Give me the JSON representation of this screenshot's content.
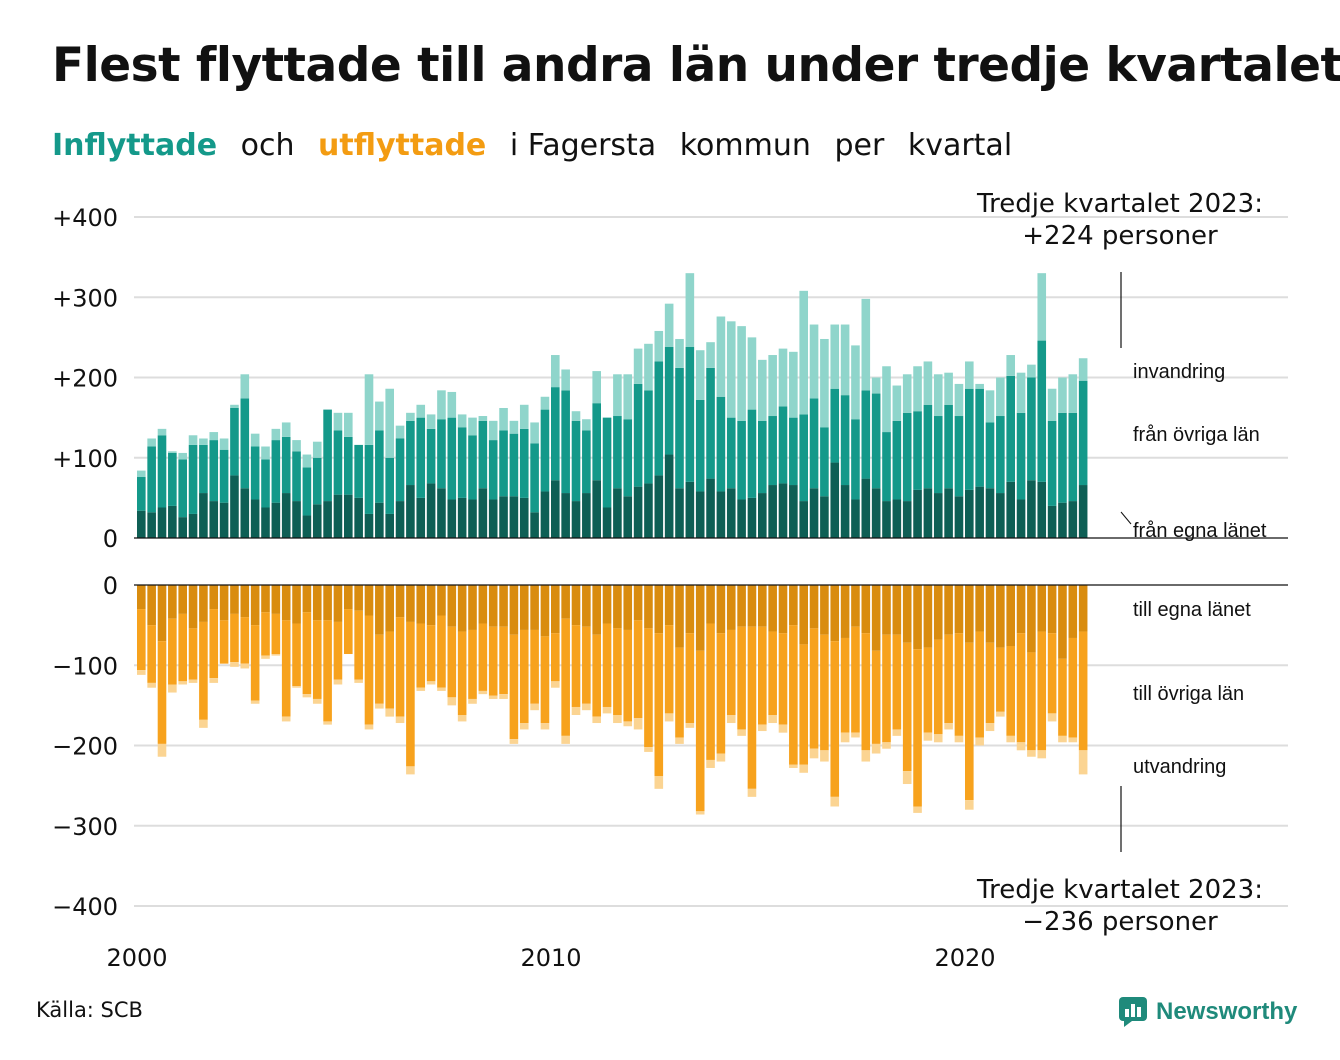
{
  "title": "Flest flyttade till andra län under tredje kvartalet",
  "subtitle": {
    "part1": "Inflyttade",
    "part2": "och",
    "part3": "utflyttade",
    "part4": "i Fagersta",
    "part5": "kommun",
    "part6": "per",
    "part7": "kvartal"
  },
  "source": "Källa: SCB",
  "logo": {
    "text": "Newsworthy",
    "icon": "newsworthy-logo-icon"
  },
  "colors": {
    "in_own": "#0e5f55",
    "in_other": "#14998a",
    "in_abroad": "#8fd5cb",
    "out_own": "#d98c0f",
    "out_other": "#f7a21d",
    "out_abroad": "#fbd492",
    "grid": "#dddddd",
    "accent_in": "#14998a",
    "accent_out": "#f39c12"
  },
  "chart_data": {
    "type": "bar",
    "stacked": true,
    "x_unit": "quarter",
    "x_start": "2000 Q1",
    "x_ticks": [
      "2000",
      "2010",
      "2020"
    ],
    "y_ticks_top": [
      "+400",
      "+300",
      "+200",
      "+100",
      "0"
    ],
    "y_ticks_bottom": [
      "0",
      "−100",
      "−200",
      "−300",
      "−400"
    ],
    "ylim_top": [
      0,
      400
    ],
    "ylim_bottom": [
      -400,
      0
    ],
    "grid": true,
    "annotation_top": {
      "line1": "Tredje kvartalet 2023:",
      "line2": "+224 personer"
    },
    "annotation_bottom": {
      "line1": "Tredje kvartalet 2023:",
      "line2": "−236 personer"
    },
    "series_labels": {
      "in_abroad": "invandring",
      "in_other": "från övriga län",
      "in_own": "från egna länet",
      "out_own": "till egna länet",
      "out_other": "till övriga län",
      "out_abroad": "utvandring"
    },
    "inflyttade": {
      "fran_egna_lanet": [
        34,
        32,
        38,
        40,
        26,
        30,
        56,
        46,
        44,
        78,
        62,
        48,
        38,
        44,
        56,
        46,
        28,
        42,
        46,
        54,
        54,
        50,
        30,
        44,
        30,
        46,
        66,
        50,
        68,
        62,
        48,
        50,
        48,
        62,
        48,
        52,
        52,
        50,
        32,
        58,
        72,
        56,
        46,
        56,
        72,
        38,
        62,
        52,
        64,
        68,
        78,
        104,
        62,
        70,
        58,
        74,
        58,
        62,
        48,
        50,
        56,
        66,
        68,
        66,
        46,
        62,
        52,
        94,
        66,
        48,
        74,
        62,
        46,
        48,
        46,
        60,
        62,
        56,
        62,
        52,
        60,
        64,
        62,
        56,
        70,
        48,
        72,
        70,
        40,
        44,
        46,
        66
      ],
      "fran_ovriga_lan": [
        42,
        82,
        90,
        66,
        72,
        86,
        60,
        76,
        66,
        84,
        112,
        66,
        60,
        78,
        70,
        62,
        60,
        58,
        114,
        80,
        72,
        66,
        86,
        90,
        70,
        78,
        80,
        100,
        68,
        86,
        102,
        88,
        80,
        84,
        74,
        82,
        78,
        86,
        86,
        102,
        116,
        128,
        100,
        78,
        96,
        112,
        90,
        96,
        128,
        116,
        142,
        134,
        150,
        168,
        114,
        138,
        118,
        88,
        98,
        110,
        90,
        86,
        96,
        84,
        108,
        112,
        86,
        92,
        112,
        100,
        110,
        118,
        86,
        98,
        110,
        98,
        104,
        96,
        104,
        100,
        126,
        122,
        82,
        96,
        132,
        108,
        128,
        176,
        106,
        112,
        110,
        130
      ],
      "invandring": [
        8,
        10,
        8,
        2,
        8,
        12,
        8,
        10,
        14,
        4,
        30,
        16,
        16,
        14,
        18,
        14,
        16,
        20,
        0,
        22,
        30,
        0,
        88,
        36,
        86,
        16,
        10,
        16,
        18,
        36,
        32,
        16,
        22,
        6,
        24,
        28,
        16,
        30,
        26,
        16,
        40,
        26,
        12,
        14,
        40,
        0,
        52,
        56,
        44,
        58,
        38,
        54,
        36,
        92,
        62,
        32,
        100,
        120,
        118,
        90,
        76,
        76,
        72,
        82,
        154,
        92,
        110,
        80,
        88,
        92,
        114,
        20,
        82,
        44,
        48,
        56,
        54,
        52,
        40,
        40,
        34,
        6,
        40,
        48,
        26,
        50,
        16,
        84,
        40,
        44,
        48,
        28
      ]
    },
    "utflyttade": {
      "till_egna_lanet": [
        30,
        50,
        70,
        42,
        36,
        54,
        46,
        30,
        44,
        36,
        40,
        50,
        34,
        36,
        44,
        48,
        34,
        44,
        44,
        46,
        30,
        32,
        38,
        62,
        58,
        40,
        46,
        48,
        50,
        38,
        52,
        58,
        56,
        48,
        52,
        52,
        62,
        56,
        56,
        64,
        60,
        42,
        50,
        52,
        62,
        48,
        54,
        56,
        44,
        54,
        60,
        50,
        78,
        60,
        82,
        48,
        60,
        56,
        52,
        52,
        52,
        58,
        60,
        50,
        74,
        54,
        62,
        70,
        66,
        52,
        60,
        82,
        62,
        62,
        72,
        80,
        78,
        68,
        62,
        60,
        72,
        58,
        72,
        78,
        76,
        60,
        84,
        58,
        60,
        92,
        66,
        58
      ],
      "till_ovriga_lan": [
        76,
        72,
        128,
        82,
        84,
        64,
        122,
        86,
        54,
        60,
        58,
        94,
        54,
        50,
        120,
        78,
        102,
        98,
        126,
        72,
        56,
        86,
        136,
        86,
        96,
        124,
        180,
        80,
        70,
        90,
        88,
        104,
        86,
        84,
        86,
        84,
        130,
        116,
        92,
        108,
        60,
        146,
        102,
        96,
        102,
        104,
        108,
        114,
        122,
        148,
        178,
        110,
        112,
        112,
        200,
        170,
        150,
        106,
        128,
        202,
        122,
        104,
        114,
        174,
        150,
        150,
        144,
        194,
        118,
        132,
        146,
        116,
        134,
        118,
        160,
        196,
        106,
        118,
        110,
        128,
        196,
        132,
        100,
        80,
        112,
        136,
        122,
        148,
        100,
        96,
        124,
        148
      ],
      "utvandring": [
        6,
        6,
        16,
        10,
        4,
        4,
        10,
        6,
        0,
        6,
        6,
        4,
        4,
        2,
        6,
        2,
        4,
        6,
        4,
        6,
        0,
        4,
        6,
        6,
        10,
        8,
        10,
        4,
        4,
        4,
        10,
        8,
        6,
        4,
        4,
        6,
        6,
        8,
        8,
        8,
        8,
        10,
        10,
        8,
        8,
        8,
        10,
        6,
        14,
        6,
        16,
        10,
        8,
        6,
        4,
        10,
        10,
        10,
        8,
        10,
        8,
        10,
        10,
        4,
        10,
        12,
        14,
        12,
        12,
        6,
        14,
        12,
        8,
        8,
        16,
        8,
        10,
        10,
        8,
        8,
        12,
        10,
        10,
        6,
        8,
        10,
        8,
        10,
        10,
        8,
        6,
        30
      ]
    }
  }
}
